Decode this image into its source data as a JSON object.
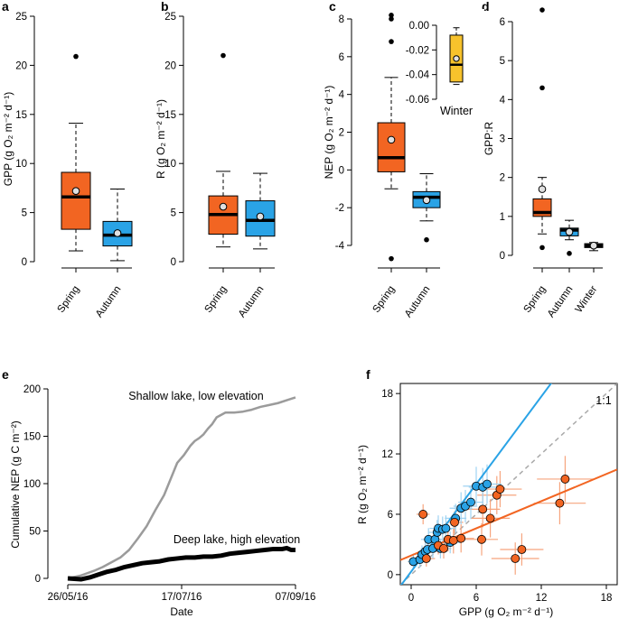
{
  "colors": {
    "spring": "#f26522",
    "autumn": "#2aa3e6",
    "winter": "#f7c22c",
    "shallow": "#9b9b9b",
    "deep": "#000000",
    "one_to_one": "#aaaaaa"
  },
  "chart_data": [
    {
      "panel": "a",
      "type": "box",
      "ylabel": "GPP (g O₂ m⁻² d⁻¹)",
      "ylim": [
        0,
        25
      ],
      "yticks": [
        0,
        5,
        10,
        15,
        20,
        25
      ],
      "categories": [
        "Spring",
        "Autumn"
      ],
      "boxes": [
        {
          "name": "Spring",
          "color": "#f26522",
          "whisker_low": 1.1,
          "q1": 3.3,
          "median": 6.6,
          "q3": 9.1,
          "whisker_high": 14.1,
          "mean": 7.2,
          "outliers": [
            20.9
          ]
        },
        {
          "name": "Autumn",
          "color": "#2aa3e6",
          "whisker_low": 0.1,
          "q1": 1.6,
          "median": 2.7,
          "q3": 4.1,
          "whisker_high": 7.4,
          "mean": 2.9,
          "outliers": []
        }
      ]
    },
    {
      "panel": "b",
      "type": "box",
      "ylabel": "R (g O₂ m⁻² d⁻¹)",
      "ylim": [
        0,
        25
      ],
      "yticks": [
        0,
        5,
        10,
        15,
        20,
        25
      ],
      "categories": [
        "Spring",
        "Autumn"
      ],
      "boxes": [
        {
          "name": "Spring",
          "color": "#f26522",
          "whisker_low": 1.5,
          "q1": 2.8,
          "median": 4.8,
          "q3": 6.7,
          "whisker_high": 9.2,
          "mean": 5.6,
          "outliers": [
            21.0
          ]
        },
        {
          "name": "Autumn",
          "color": "#2aa3e6",
          "whisker_low": 1.3,
          "q1": 2.6,
          "median": 4.2,
          "q3": 6.2,
          "whisker_high": 9.0,
          "mean": 4.6,
          "outliers": []
        }
      ]
    },
    {
      "panel": "c",
      "type": "box",
      "ylabel": "NEP (g O₂ m⁻² d⁻¹)",
      "ylim": [
        -4,
        8
      ],
      "yticks": [
        -4,
        -2,
        0,
        2,
        4,
        6,
        8
      ],
      "categories": [
        "Spring",
        "Autumn"
      ],
      "boxes": [
        {
          "name": "Spring",
          "color": "#f26522",
          "whisker_low": -1.0,
          "q1": -0.1,
          "median": 0.65,
          "q3": 2.5,
          "whisker_high": 4.9,
          "mean": 1.6,
          "outliers": [
            8.2,
            8.0,
            6.8,
            -4.7
          ]
        },
        {
          "name": "Autumn",
          "color": "#2aa3e6",
          "whisker_low": -2.7,
          "q1": -2.0,
          "median": -1.45,
          "q3": -1.15,
          "whisker_high": -0.2,
          "mean": -1.6,
          "outliers": [
            -3.7
          ]
        }
      ],
      "inset": {
        "label": "Winter",
        "ylim": [
          -0.06,
          0.0
        ],
        "yticks": [
          0.0,
          -0.02,
          -0.04,
          -0.06
        ],
        "tick_labels": [
          "0.00",
          "-0.02",
          "-0.04",
          "-0.06"
        ],
        "box": {
          "name": "Winter",
          "color": "#f7c22c",
          "whisker_low": -0.048,
          "q1": -0.046,
          "median": -0.032,
          "q3": -0.008,
          "whisker_high": -0.002,
          "mean": -0.027,
          "outliers": []
        }
      }
    },
    {
      "panel": "d",
      "type": "box",
      "ylabel": "GPP:R",
      "ylim": [
        0,
        6
      ],
      "yticks": [
        0,
        1,
        2,
        3,
        4,
        5,
        6
      ],
      "categories": [
        "Spring",
        "Autumn",
        "Winter"
      ],
      "boxes": [
        {
          "name": "Spring",
          "color": "#f26522",
          "whisker_low": 0.55,
          "q1": 1.0,
          "median": 1.1,
          "q3": 1.45,
          "whisker_high": 2.0,
          "mean": 1.7,
          "outliers": [
            6.3,
            4.3,
            0.2
          ]
        },
        {
          "name": "Autumn",
          "color": "#2aa3e6",
          "whisker_low": 0.4,
          "q1": 0.5,
          "median": 0.65,
          "q3": 0.7,
          "whisker_high": 0.9,
          "mean": 0.6,
          "outliers": [
            0.05
          ]
        },
        {
          "name": "Winter",
          "color": "#f7c22c",
          "whisker_low": 0.12,
          "q1": 0.2,
          "median": 0.25,
          "q3": 0.3,
          "whisker_high": 0.33,
          "mean": 0.25,
          "outliers": []
        }
      ]
    },
    {
      "panel": "e",
      "type": "line",
      "xlabel": "Date",
      "ylabel": "Cumulative NEP (g C m⁻²)",
      "xlim": [
        0,
        104
      ],
      "ylim": [
        0,
        200
      ],
      "xticks": [
        0,
        52,
        104
      ],
      "xtick_labels": [
        "26/05/16",
        "17/07/16",
        "07/09/16"
      ],
      "yticks": [
        0,
        50,
        100,
        150,
        200
      ],
      "series": [
        {
          "name": "Shallow lake, low elevation",
          "color": "#9b9b9b",
          "x": [
            0,
            6,
            12,
            16,
            20,
            24,
            28,
            32,
            36,
            40,
            44,
            47,
            50,
            53,
            56,
            58,
            60,
            62,
            64,
            66,
            68,
            72,
            76,
            80,
            84,
            88,
            92,
            96,
            100,
            104
          ],
          "y": [
            0,
            3,
            8,
            12,
            17,
            22,
            30,
            42,
            55,
            72,
            88,
            105,
            122,
            130,
            140,
            145,
            148,
            152,
            158,
            163,
            170,
            175,
            175,
            176,
            178,
            181,
            183,
            185,
            188,
            191
          ]
        },
        {
          "name": "Deep lake, high elevation",
          "color": "#000000",
          "x": [
            0,
            6,
            10,
            14,
            18,
            22,
            26,
            30,
            34,
            38,
            42,
            46,
            50,
            54,
            58,
            62,
            66,
            70,
            74,
            78,
            82,
            86,
            90,
            94,
            98,
            100,
            102,
            104
          ],
          "y": [
            0,
            -1,
            1,
            4,
            7,
            9,
            12,
            14,
            16,
            17,
            18,
            20,
            21,
            22,
            22,
            23,
            23,
            24,
            26,
            27,
            28,
            29,
            30,
            31,
            31,
            32,
            30,
            30
          ]
        }
      ]
    },
    {
      "panel": "f",
      "type": "scatter",
      "xlabel": "GPP (g O₂ m⁻² d⁻¹)",
      "ylabel": "R (g O₂ m⁻² d⁻¹)",
      "xlim": [
        -1,
        19
      ],
      "ylim": [
        -1,
        19
      ],
      "xticks": [
        0,
        6,
        12,
        18
      ],
      "yticks": [
        0,
        6,
        12,
        18
      ],
      "one_to_one_label": "1:1",
      "series": [
        {
          "name": "Autumn",
          "color": "#2aa3e6",
          "x": [
            0.2,
            0.8,
            1.0,
            1.3,
            1.5,
            1.6,
            2.0,
            2.2,
            2.4,
            2.5,
            2.7,
            2.9,
            3.2,
            3.6,
            4.1,
            4.6,
            5.0,
            5.5,
            6.0,
            6.6,
            7.0
          ],
          "y": [
            1.3,
            1.5,
            2.0,
            2.3,
            2.5,
            3.5,
            2.6,
            3.5,
            4.2,
            4.6,
            2.6,
            4.5,
            4.6,
            3.2,
            5.6,
            6.6,
            6.8,
            7.2,
            8.8,
            8.7,
            9.0
          ],
          "fit": {
            "slope": 1.45,
            "intercept": 0.3
          }
        },
        {
          "name": "Spring",
          "color": "#f26522",
          "x": [
            1.1,
            1.4,
            2.5,
            3.0,
            3.4,
            3.9,
            4.0,
            4.6,
            6.5,
            6.6,
            7.3,
            7.9,
            8.2,
            9.6,
            10.2,
            13.7,
            14.2
          ],
          "y": [
            6.0,
            1.6,
            2.9,
            2.6,
            3.5,
            3.4,
            5.2,
            3.6,
            3.5,
            6.5,
            5.6,
            7.9,
            8.5,
            1.6,
            2.5,
            7.1,
            9.5
          ],
          "fit": {
            "slope": 0.45,
            "intercept": 1.9
          },
          "xerr": [
            0.6,
            0.8,
            0.8,
            0.7,
            0.8,
            0.9,
            0.8,
            1.2,
            1.5,
            1.6,
            1.8,
            1.8,
            2.0,
            2.2,
            2.0,
            2.4,
            2.6
          ],
          "yerr": [
            1.0,
            0.8,
            0.9,
            1.0,
            1.2,
            1.3,
            1.1,
            1.4,
            1.6,
            1.8,
            1.9,
            1.9,
            1.8,
            1.6,
            1.6,
            2.1,
            2.3
          ]
        }
      ]
    }
  ]
}
